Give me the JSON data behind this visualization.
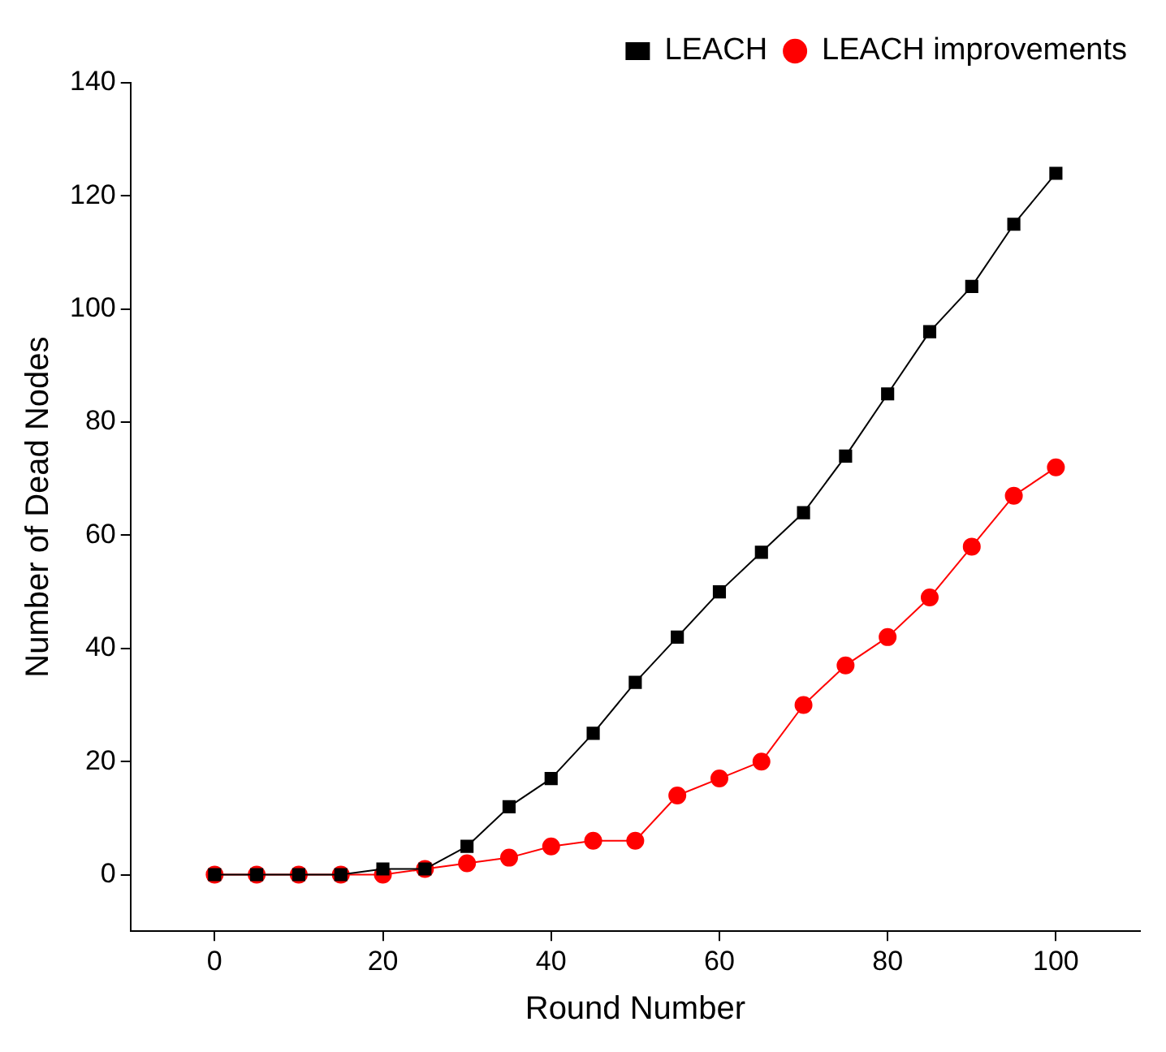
{
  "chart_data": {
    "type": "line",
    "xlabel": "Round Number",
    "ylabel": "Number of Dead Nodes",
    "x": [
      0,
      5,
      10,
      15,
      20,
      25,
      30,
      35,
      40,
      45,
      50,
      55,
      60,
      65,
      70,
      75,
      80,
      85,
      90,
      95,
      100
    ],
    "series": [
      {
        "name": "LEACH",
        "color": "#000000",
        "marker": "square",
        "values": [
          0,
          0,
          0,
          0,
          1,
          1,
          5,
          12,
          17,
          25,
          34,
          42,
          50,
          57,
          64,
          74,
          85,
          96,
          104,
          115,
          124
        ]
      },
      {
        "name": "LEACH improvements",
        "color": "#ff0000",
        "marker": "circle",
        "values": [
          0,
          0,
          0,
          0,
          0,
          1,
          2,
          3,
          5,
          6,
          6,
          14,
          17,
          20,
          30,
          37,
          42,
          49,
          58,
          67,
          72
        ]
      }
    ],
    "xlim": [
      -10,
      110
    ],
    "xticks": [
      0,
      20,
      40,
      60,
      80,
      100
    ],
    "ylim": [
      -10,
      140
    ],
    "yticks": [
      0,
      20,
      40,
      60,
      80,
      100,
      120,
      140
    ],
    "grid": false,
    "legend": "top right",
    "line_style": "solid"
  }
}
